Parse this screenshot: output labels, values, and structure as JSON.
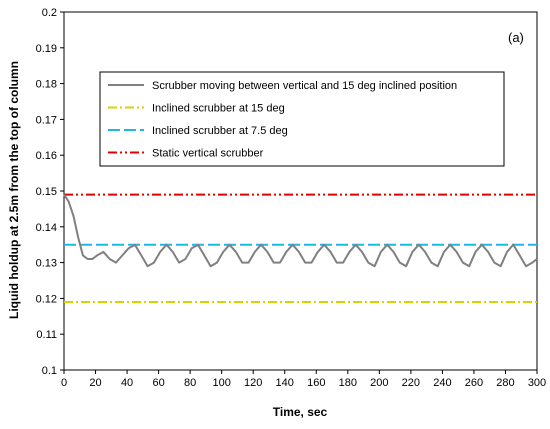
{
  "chart_data": {
    "type": "line",
    "panel_label": "(a)",
    "xlabel": "Time, sec",
    "ylabel": "Liquid holdup at 2.5m  from  the  top  of column",
    "xlim": [
      0,
      300
    ],
    "ylim": [
      0.1,
      0.2
    ],
    "x_ticks": [
      0,
      20,
      40,
      60,
      80,
      100,
      120,
      140,
      160,
      180,
      200,
      220,
      240,
      260,
      280,
      300
    ],
    "y_ticks": [
      0.1,
      0.11,
      0.12,
      0.13,
      0.14,
      0.15,
      0.16,
      0.17,
      0.18,
      0.19,
      0.2
    ],
    "grid": false,
    "legend_position": "top-center",
    "series": [
      {
        "name": "Scrubber moving between vertical and 15 deg inclined position",
        "color": "#808080",
        "style": "solid",
        "x": [
          0,
          3,
          6,
          9,
          12,
          15,
          18,
          21,
          25,
          29,
          33,
          37,
          41,
          45,
          49,
          53,
          57,
          61,
          65,
          69,
          73,
          77,
          81,
          85,
          89,
          93,
          97,
          101,
          105,
          109,
          113,
          117,
          121,
          125,
          129,
          133,
          137,
          141,
          145,
          149,
          153,
          157,
          161,
          165,
          169,
          173,
          177,
          181,
          185,
          189,
          193,
          197,
          201,
          205,
          209,
          213,
          217,
          221,
          225,
          229,
          233,
          237,
          241,
          245,
          249,
          253,
          257,
          261,
          265,
          269,
          273,
          277,
          281,
          285,
          289,
          293,
          297,
          300
        ],
        "y": [
          0.149,
          0.147,
          0.143,
          0.137,
          0.132,
          0.131,
          0.131,
          0.132,
          0.133,
          0.131,
          0.13,
          0.132,
          0.134,
          0.135,
          0.132,
          0.129,
          0.13,
          0.133,
          0.135,
          0.133,
          0.13,
          0.131,
          0.134,
          0.135,
          0.132,
          0.129,
          0.13,
          0.133,
          0.135,
          0.133,
          0.13,
          0.13,
          0.133,
          0.135,
          0.133,
          0.13,
          0.13,
          0.133,
          0.135,
          0.133,
          0.13,
          0.13,
          0.133,
          0.135,
          0.133,
          0.13,
          0.13,
          0.133,
          0.135,
          0.133,
          0.13,
          0.129,
          0.133,
          0.135,
          0.133,
          0.13,
          0.129,
          0.133,
          0.135,
          0.133,
          0.13,
          0.129,
          0.133,
          0.135,
          0.133,
          0.13,
          0.129,
          0.133,
          0.135,
          0.133,
          0.13,
          0.129,
          0.133,
          0.135,
          0.132,
          0.129,
          0.13,
          0.131
        ]
      },
      {
        "name": "Inclined scrubber at 15 deg",
        "color": "#d4d400",
        "style": "dashdot",
        "x": [
          0,
          300
        ],
        "y": [
          0.119,
          0.119
        ]
      },
      {
        "name": "Inclined scrubber at 7.5 deg",
        "color": "#1fb8e6",
        "style": "dashed",
        "x": [
          0,
          300
        ],
        "y": [
          0.135,
          0.135
        ]
      },
      {
        "name": "Static vertical scrubber",
        "color": "#e00000",
        "style": "dashdotdot",
        "x": [
          0,
          300
        ],
        "y": [
          0.149,
          0.149
        ]
      }
    ]
  }
}
